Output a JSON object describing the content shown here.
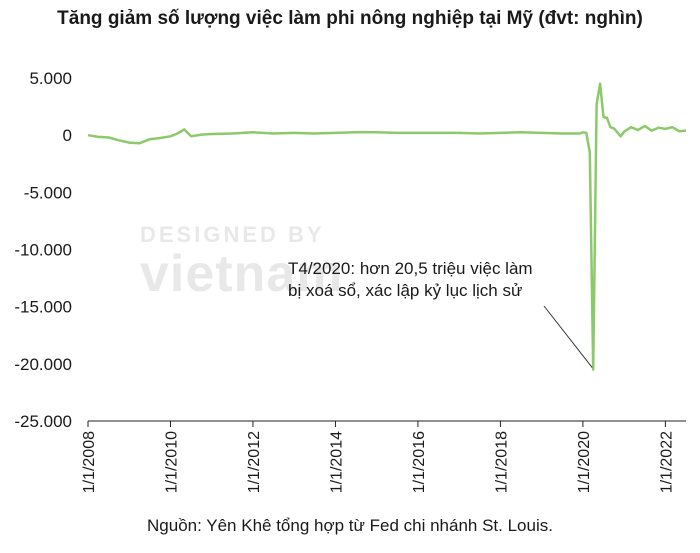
{
  "title": "Tăng giảm số lượng việc làm phi nông nghiệp tại Mỹ (đvt: nghìn)",
  "source": "Nguồn: Yên Khê tổng hợp từ Fed chi nhánh St. Louis.",
  "watermark": {
    "line1": "DESIGNED BY",
    "line2": "vietnam"
  },
  "chart_data": {
    "type": "line",
    "title": "Tăng giảm số lượng việc làm phi nông nghiệp tại Mỹ (đvt: nghìn)",
    "xlabel": "",
    "ylabel": "",
    "ylim": [
      -25000,
      5000
    ],
    "xlim": [
      "2008-01-01",
      "2022-07-01"
    ],
    "yticks": [
      5000,
      0,
      -5000,
      -10000,
      -15000,
      -20000,
      -25000
    ],
    "ytick_labels": [
      "5.000",
      "0",
      "-5.000",
      "-10.000",
      "-15.000",
      "-20.000",
      "-25.000"
    ],
    "xticks": [
      "2008-01-01",
      "2010-01-01",
      "2012-01-01",
      "2014-01-01",
      "2016-01-01",
      "2018-01-01",
      "2020-01-01",
      "2022-01-01"
    ],
    "xtick_labels": [
      "1/1/2008",
      "1/1/2010",
      "1/1/2012",
      "1/1/2014",
      "1/1/2016",
      "1/1/2018",
      "1/1/2020",
      "1/1/2022"
    ],
    "grid": false,
    "line_color": "#8cc96b",
    "series": [
      {
        "points": [
          [
            "2008-01-01",
            0
          ],
          [
            "2008-04-01",
            -150
          ],
          [
            "2008-07-01",
            -200
          ],
          [
            "2008-10-01",
            -450
          ],
          [
            "2009-01-01",
            -650
          ],
          [
            "2009-04-01",
            -700
          ],
          [
            "2009-07-01",
            -350
          ],
          [
            "2009-10-01",
            -250
          ],
          [
            "2010-01-01",
            -100
          ],
          [
            "2010-03-01",
            150
          ],
          [
            "2010-05-01",
            500
          ],
          [
            "2010-07-01",
            -100
          ],
          [
            "2010-10-01",
            50
          ],
          [
            "2011-01-01",
            100
          ],
          [
            "2011-07-01",
            150
          ],
          [
            "2012-01-01",
            250
          ],
          [
            "2012-07-01",
            150
          ],
          [
            "2013-01-01",
            200
          ],
          [
            "2013-07-01",
            150
          ],
          [
            "2014-01-01",
            200
          ],
          [
            "2014-07-01",
            250
          ],
          [
            "2015-01-01",
            250
          ],
          [
            "2015-07-01",
            200
          ],
          [
            "2016-01-01",
            200
          ],
          [
            "2016-07-01",
            200
          ],
          [
            "2017-01-01",
            200
          ],
          [
            "2017-07-01",
            150
          ],
          [
            "2018-01-01",
            200
          ],
          [
            "2018-07-01",
            250
          ],
          [
            "2019-01-01",
            200
          ],
          [
            "2019-07-01",
            150
          ],
          [
            "2019-12-01",
            150
          ],
          [
            "2020-01-01",
            250
          ],
          [
            "2020-02-01",
            200
          ],
          [
            "2020-03-01",
            -1500
          ],
          [
            "2020-04-01",
            -20500
          ],
          [
            "2020-05-01",
            2700
          ],
          [
            "2020-06-01",
            4500
          ],
          [
            "2020-07-01",
            1600
          ],
          [
            "2020-08-01",
            1500
          ],
          [
            "2020-09-01",
            700
          ],
          [
            "2020-10-01",
            600
          ],
          [
            "2020-11-01",
            250
          ],
          [
            "2020-12-01",
            -100
          ],
          [
            "2021-01-01",
            300
          ],
          [
            "2021-03-01",
            700
          ],
          [
            "2021-05-01",
            450
          ],
          [
            "2021-07-01",
            800
          ],
          [
            "2021-09-01",
            400
          ],
          [
            "2021-11-01",
            650
          ],
          [
            "2022-01-01",
            550
          ],
          [
            "2022-03-01",
            700
          ],
          [
            "2022-05-01",
            350
          ],
          [
            "2022-07-01",
            400
          ]
        ]
      }
    ],
    "annotation": {
      "lines": [
        "T4/2020: hơn 20,5 triệu việc làm",
        "bị xoá sổ, xác lập kỷ lục lịch sử"
      ],
      "target": [
        "2020-04-01",
        -20500
      ]
    }
  }
}
